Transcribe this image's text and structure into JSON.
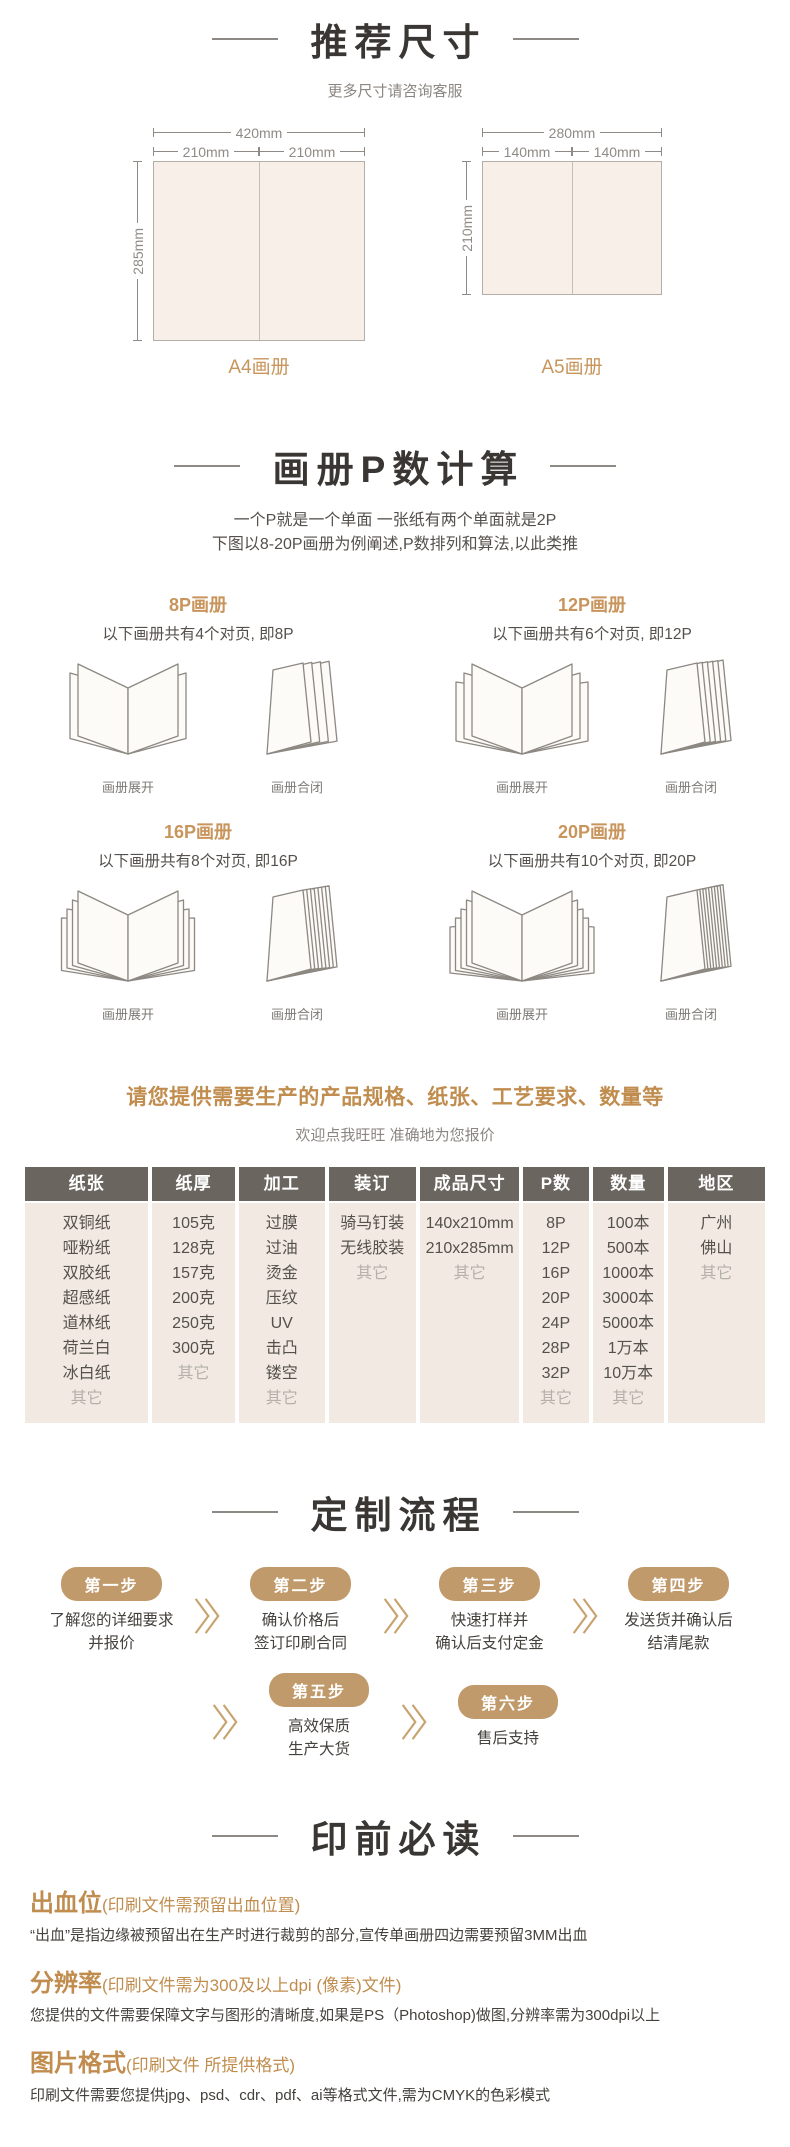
{
  "accent_gold": "#c8955c",
  "table_header_bg": "#6b655f",
  "sheet_fill": "#f8f0e8",
  "sizes_section": {
    "title": "推荐尺寸",
    "subtitle": "更多尺寸请咨询客服",
    "a4": {
      "label": "A4画册",
      "total_width": "420mm",
      "half_left": "210mm",
      "half_right": "210mm",
      "height": "285mm"
    },
    "a5": {
      "label": "A5画册",
      "total_width": "280mm",
      "half_left": "140mm",
      "half_right": "140mm",
      "height": "210mm"
    }
  },
  "pcount_section": {
    "title": "画册P数计算",
    "intro_line1": "一个P就是一个单面 一张纸有两个单面就是2P",
    "intro_line2": "下图以8-20P画册为例阐述,P数排列和算法,以此类推",
    "open_caption": "画册展开",
    "closed_caption": "画册合闭",
    "groups": [
      {
        "label": "8P画册",
        "desc": "以下画册共有4个对页, 即8P",
        "spreads": 4
      },
      {
        "label": "12P画册",
        "desc": "以下画册共有6个对页, 即12P",
        "spreads": 6
      },
      {
        "label": "16P画册",
        "desc": "以下画册共有8个对页, 即16P",
        "spreads": 8
      },
      {
        "label": "20P画册",
        "desc": "以下画册共有10个对页, 即20P",
        "spreads": 10
      }
    ]
  },
  "spec_section": {
    "headline": "请您提供需要生产的产品规格、纸张、工艺要求、数量等",
    "subline": "欢迎点我旺旺 准确地为您报价",
    "table": {
      "columns": [
        {
          "header": "纸张",
          "items": [
            "双铜纸",
            "哑粉纸",
            "双胶纸",
            "超感纸",
            "道林纸",
            "荷兰白",
            "冰白纸"
          ],
          "other": "其它"
        },
        {
          "header": "纸厚",
          "items": [
            "105克",
            "128克",
            "157克",
            "200克",
            "250克",
            "300克"
          ],
          "other": "其它"
        },
        {
          "header": "加工",
          "items": [
            "过膜",
            "过油",
            "烫金",
            "压纹",
            "UV",
            "击凸",
            "镂空"
          ],
          "other": "其它"
        },
        {
          "header": "装订",
          "items": [
            "骑马钉装",
            "无线胶装"
          ],
          "other": "其它"
        },
        {
          "header": "成品尺寸",
          "items": [
            "140x210mm",
            "210x285mm"
          ],
          "other": "其它"
        },
        {
          "header": "P数",
          "items": [
            "8P",
            "12P",
            "16P",
            "20P",
            "24P",
            "28P",
            "32P"
          ],
          "other": "其它"
        },
        {
          "header": "数量",
          "items": [
            "100本",
            "500本",
            "1000本",
            "3000本",
            "5000本",
            "1万本",
            "10万本"
          ],
          "other": "其它"
        },
        {
          "header": "地区",
          "items": [
            "广州",
            "佛山"
          ],
          "other": "其它"
        }
      ]
    }
  },
  "process_section": {
    "title": "定制流程",
    "steps": [
      {
        "badge": "第一步",
        "lines": [
          "了解您的详细要求",
          "并报价"
        ]
      },
      {
        "badge": "第二步",
        "lines": [
          "确认价格后",
          "签订印刷合同"
        ]
      },
      {
        "badge": "第三步",
        "lines": [
          "快速打样并",
          "确认后支付定金"
        ]
      },
      {
        "badge": "第四步",
        "lines": [
          "发送货并确认后",
          "结清尾款"
        ]
      },
      {
        "badge": "第五步",
        "lines": [
          "高效保质",
          "生产大货"
        ]
      },
      {
        "badge": "第六步",
        "lines": [
          "售后支持"
        ]
      }
    ],
    "rows": [
      [
        0,
        1,
        2,
        3
      ],
      [
        4,
        5
      ]
    ]
  },
  "prepress_section": {
    "title": "印前必读",
    "items": [
      {
        "term": "出血位",
        "paren": "(印刷文件需预留出血位置)",
        "body": "“出血”是指边缘被预留出在生产时进行裁剪的部分,宣传单画册四边需要预留3MM出血"
      },
      {
        "term": "分辨率",
        "paren": "(印刷文件需为300及以上dpi (像素)文件)",
        "body": "您提供的文件需要保障文字与图形的清晰度,如果是PS（Photoshop)做图,分辨率需为300dpi以上"
      },
      {
        "term": "图片格式",
        "paren": "(印刷文件 所提供格式)",
        "body": "印刷文件需要您提供jpg、psd、cdr、pdf、ai等格式文件,需为CMYK的色彩模式"
      }
    ]
  }
}
